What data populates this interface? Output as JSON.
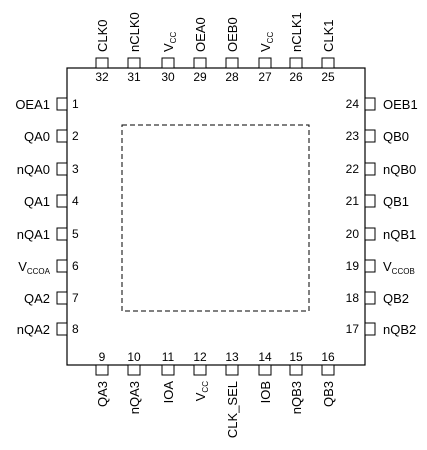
{
  "pins": [
    {
      "num": "1",
      "name": "OEA1"
    },
    {
      "num": "2",
      "name": "QA0"
    },
    {
      "num": "3",
      "name": "nQA0"
    },
    {
      "num": "4",
      "name": "QA1"
    },
    {
      "num": "5",
      "name": "nQA1"
    },
    {
      "num": "6",
      "name": "V",
      "sub": "CCOA"
    },
    {
      "num": "7",
      "name": "QA2"
    },
    {
      "num": "8",
      "name": "nQA2"
    },
    {
      "num": "9",
      "name": "QA3"
    },
    {
      "num": "10",
      "name": "nQA3"
    },
    {
      "num": "11",
      "name": "IOA"
    },
    {
      "num": "12",
      "name": "V",
      "sub": "CC"
    },
    {
      "num": "13",
      "name": "CLK_SEL"
    },
    {
      "num": "14",
      "name": "IOB"
    },
    {
      "num": "15",
      "name": "nQB3"
    },
    {
      "num": "16",
      "name": "QB3"
    },
    {
      "num": "17",
      "name": "nQB2"
    },
    {
      "num": "18",
      "name": "QB2"
    },
    {
      "num": "19",
      "name": "V",
      "sub": "CCOB"
    },
    {
      "num": "20",
      "name": "nQB1"
    },
    {
      "num": "21",
      "name": "QB1"
    },
    {
      "num": "22",
      "name": "nQB0"
    },
    {
      "num": "23",
      "name": "QB0"
    },
    {
      "num": "24",
      "name": "OEB1"
    },
    {
      "num": "25",
      "name": "CLK1"
    },
    {
      "num": "26",
      "name": "nCLK1"
    },
    {
      "num": "27",
      "name": "V",
      "sub": "CC"
    },
    {
      "num": "28",
      "name": "OEB0"
    },
    {
      "num": "29",
      "name": "OEA0"
    },
    {
      "num": "30",
      "name": "V",
      "sub": "CC"
    },
    {
      "num": "31",
      "name": "nCLK0"
    },
    {
      "num": "32",
      "name": "CLK0"
    }
  ]
}
